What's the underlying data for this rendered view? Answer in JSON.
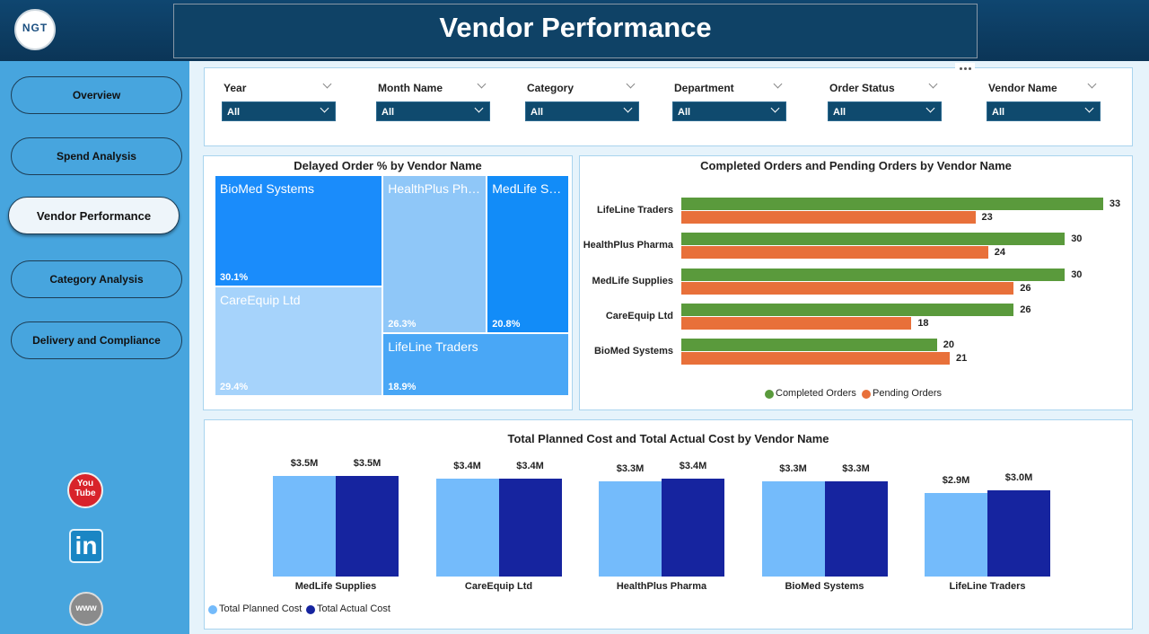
{
  "header": {
    "logo": "NGT",
    "title": "Vendor Performance"
  },
  "nav": [
    "Overview",
    "Spend Analysis",
    "Vendor Performance",
    "Category Analysis",
    "Delivery and Compliance"
  ],
  "nav_active": 2,
  "filters": [
    {
      "label": "Year",
      "value": "All"
    },
    {
      "label": "Month Name",
      "value": "All"
    },
    {
      "label": "Category",
      "value": "All"
    },
    {
      "label": "Department",
      "value": "All"
    },
    {
      "label": "Order Status",
      "value": "All"
    },
    {
      "label": "Vendor Name",
      "value": "All"
    }
  ],
  "social": [
    "You Tube",
    "in",
    "www"
  ],
  "chart_data": [
    {
      "type": "treemap",
      "title": "Delayed Order % by Vendor Name",
      "categories": [
        "BioMed Systems",
        "CareEquip Ltd",
        "HealthPlus Pharma",
        "MedLife Supplies",
        "LifeLine Traders"
      ],
      "values": [
        30.1,
        29.4,
        26.3,
        20.8,
        18.9
      ],
      "value_labels": [
        "30.1%",
        "29.4%",
        "26.3%",
        "20.8%",
        "18.9%"
      ],
      "colors": [
        "#1a8cfb",
        "#a6d3fb",
        "#8fc7f8",
        "#128cf8",
        "#49a7f6"
      ]
    },
    {
      "type": "hbar",
      "title": "Completed Orders and Pending Orders by Vendor Name",
      "categories": [
        "LifeLine Traders",
        "HealthPlus Pharma",
        "MedLife Supplies",
        "CareEquip Ltd",
        "BioMed Systems"
      ],
      "series": [
        {
          "name": "Completed Orders",
          "color": "#5a9a3c",
          "values": [
            33,
            30,
            30,
            26,
            20
          ]
        },
        {
          "name": "Pending Orders",
          "color": "#e8703a",
          "values": [
            23,
            24,
            26,
            18,
            21
          ]
        }
      ],
      "legend": "bottom"
    },
    {
      "type": "bar",
      "title": "Total Planned Cost and Total Actual Cost by Vendor Name",
      "categories": [
        "MedLife Supplies",
        "CareEquip Ltd",
        "HealthPlus Pharma",
        "BioMed Systems",
        "LifeLine Traders"
      ],
      "series": [
        {
          "name": "Total Planned Cost",
          "color": "#74bbfb",
          "values": [
            3500000,
            3400000,
            3300000,
            3300000,
            2900000
          ],
          "value_labels": [
            "$3.5M",
            "$3.4M",
            "$3.3M",
            "$3.3M",
            "$2.9M"
          ]
        },
        {
          "name": "Total Actual Cost",
          "color": "#16249f",
          "values": [
            3500000,
            3400000,
            3400000,
            3300000,
            3000000
          ],
          "value_labels": [
            "$3.5M",
            "$3.4M",
            "$3.4M",
            "$3.3M",
            "$3.0M"
          ]
        }
      ],
      "legend": "bottom-left"
    }
  ]
}
